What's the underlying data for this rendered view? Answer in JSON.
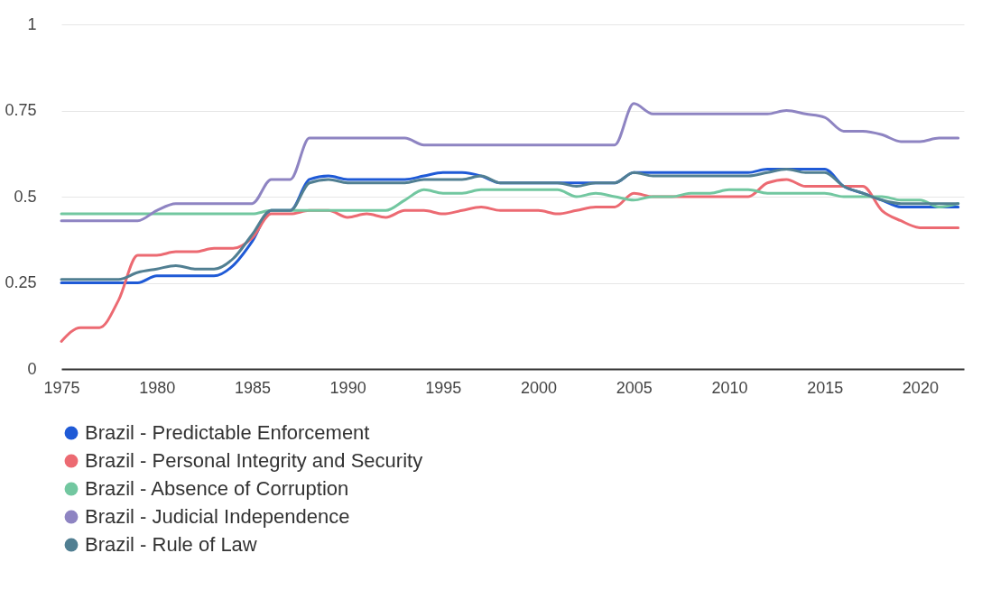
{
  "chart_data": {
    "type": "line",
    "x": [
      1975,
      1976,
      1977,
      1978,
      1979,
      1980,
      1981,
      1982,
      1983,
      1984,
      1985,
      1986,
      1987,
      1988,
      1989,
      1990,
      1991,
      1992,
      1993,
      1994,
      1995,
      1996,
      1997,
      1998,
      1999,
      2000,
      2001,
      2002,
      2003,
      2004,
      2005,
      2006,
      2007,
      2008,
      2009,
      2010,
      2011,
      2012,
      2013,
      2014,
      2015,
      2016,
      2017,
      2018,
      2019,
      2020,
      2021,
      2022
    ],
    "series": [
      {
        "name": "Brazil - Predictable Enforcement",
        "color": "#1f5ad6",
        "values": [
          0.25,
          0.25,
          0.25,
          0.25,
          0.25,
          0.27,
          0.27,
          0.27,
          0.27,
          0.3,
          0.37,
          0.46,
          0.46,
          0.55,
          0.56,
          0.55,
          0.55,
          0.55,
          0.55,
          0.56,
          0.57,
          0.57,
          0.56,
          0.54,
          0.54,
          0.54,
          0.54,
          0.54,
          0.54,
          0.54,
          0.57,
          0.57,
          0.57,
          0.57,
          0.57,
          0.57,
          0.57,
          0.58,
          0.58,
          0.58,
          0.58,
          0.53,
          0.51,
          0.49,
          0.47,
          0.47,
          0.47,
          0.47
        ]
      },
      {
        "name": "Brazil - Personal Integrity and Security",
        "color": "#ec6a72",
        "values": [
          0.08,
          0.12,
          0.12,
          0.2,
          0.33,
          0.33,
          0.34,
          0.34,
          0.35,
          0.35,
          0.38,
          0.45,
          0.45,
          0.46,
          0.46,
          0.44,
          0.45,
          0.44,
          0.46,
          0.46,
          0.45,
          0.46,
          0.47,
          0.46,
          0.46,
          0.46,
          0.45,
          0.46,
          0.47,
          0.47,
          0.51,
          0.5,
          0.5,
          0.5,
          0.5,
          0.5,
          0.5,
          0.54,
          0.55,
          0.53,
          0.53,
          0.53,
          0.53,
          0.46,
          0.43,
          0.41,
          0.41,
          0.41
        ]
      },
      {
        "name": "Brazil - Absence of Corruption",
        "color": "#72c7a0",
        "values": [
          0.45,
          0.45,
          0.45,
          0.45,
          0.45,
          0.45,
          0.45,
          0.45,
          0.45,
          0.45,
          0.45,
          0.46,
          0.46,
          0.46,
          0.46,
          0.46,
          0.46,
          0.46,
          0.49,
          0.52,
          0.51,
          0.51,
          0.52,
          0.52,
          0.52,
          0.52,
          0.52,
          0.5,
          0.51,
          0.5,
          0.49,
          0.5,
          0.5,
          0.51,
          0.51,
          0.52,
          0.52,
          0.51,
          0.51,
          0.51,
          0.51,
          0.5,
          0.5,
          0.5,
          0.49,
          0.49,
          0.47,
          0.48
        ]
      },
      {
        "name": "Brazil - Judicial Independence",
        "color": "#8e84c2",
        "values": [
          0.43,
          0.43,
          0.43,
          0.43,
          0.43,
          0.46,
          0.48,
          0.48,
          0.48,
          0.48,
          0.48,
          0.55,
          0.55,
          0.67,
          0.67,
          0.67,
          0.67,
          0.67,
          0.67,
          0.65,
          0.65,
          0.65,
          0.65,
          0.65,
          0.65,
          0.65,
          0.65,
          0.65,
          0.65,
          0.65,
          0.77,
          0.74,
          0.74,
          0.74,
          0.74,
          0.74,
          0.74,
          0.74,
          0.75,
          0.74,
          0.73,
          0.69,
          0.69,
          0.68,
          0.66,
          0.66,
          0.67,
          0.67
        ]
      },
      {
        "name": "Brazil - Rule of Law",
        "color": "#517f92",
        "values": [
          0.26,
          0.26,
          0.26,
          0.26,
          0.28,
          0.29,
          0.3,
          0.29,
          0.29,
          0.32,
          0.39,
          0.46,
          0.46,
          0.54,
          0.55,
          0.54,
          0.54,
          0.54,
          0.54,
          0.55,
          0.55,
          0.55,
          0.56,
          0.54,
          0.54,
          0.54,
          0.54,
          0.53,
          0.54,
          0.54,
          0.57,
          0.56,
          0.56,
          0.56,
          0.56,
          0.56,
          0.56,
          0.57,
          0.58,
          0.57,
          0.57,
          0.53,
          0.51,
          0.49,
          0.48,
          0.48,
          0.48,
          0.48
        ]
      }
    ],
    "xlim": [
      1975,
      2022.3
    ],
    "xticks": [
      1975,
      1980,
      1985,
      1990,
      1995,
      2000,
      2005,
      2010,
      2015,
      2020
    ],
    "ylim": [
      0,
      1
    ],
    "yticks": [
      0,
      0.25,
      0.5,
      0.75,
      1
    ],
    "grid": "y",
    "legend": "bottom",
    "marker": "none",
    "line_style": "solid"
  }
}
